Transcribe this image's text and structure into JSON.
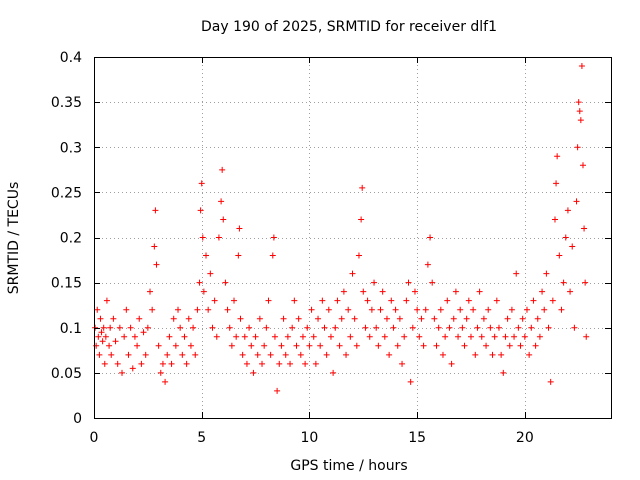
{
  "chart_data": {
    "type": "scatter",
    "title": "Day 190 of 2025, SRMTID for receiver dlf1",
    "xlabel": "GPS time / hours",
    "ylabel": "SRMTID / TECUs",
    "xlim": [
      0,
      24
    ],
    "ylim": [
      0,
      0.4
    ],
    "x_ticks": [
      0,
      5,
      10,
      15,
      20
    ],
    "x_tick_labels": [
      "0",
      "5",
      "10",
      "15",
      "20"
    ],
    "y_ticks": [
      0,
      0.05,
      0.1,
      0.15,
      0.2,
      0.25,
      0.3,
      0.35,
      0.4
    ],
    "y_tick_labels": [
      "0",
      "0.05",
      "0.1",
      "0.15",
      "0.2",
      "0.25",
      "0.3",
      "0.35",
      "0.4"
    ],
    "grid": true,
    "marker": "plus",
    "color": "#ff0000",
    "series": [
      {
        "values": [
          [
            0.05,
            0.1
          ],
          [
            0.1,
            0.08
          ],
          [
            0.15,
            0.12
          ],
          [
            0.2,
            0.09
          ],
          [
            0.25,
            0.07
          ],
          [
            0.3,
            0.11
          ],
          [
            0.35,
            0.095
          ],
          [
            0.4,
            0.085
          ],
          [
            0.45,
            0.1
          ],
          [
            0.5,
            0.06
          ],
          [
            0.55,
            0.09
          ],
          [
            0.6,
            0.13
          ],
          [
            0.7,
            0.08
          ],
          [
            0.75,
            0.1
          ],
          [
            0.8,
            0.07
          ],
          [
            0.9,
            0.11
          ],
          [
            1.0,
            0.085
          ],
          [
            1.1,
            0.06
          ],
          [
            1.2,
            0.1
          ],
          [
            1.3,
            0.05
          ],
          [
            1.4,
            0.09
          ],
          [
            1.5,
            0.12
          ],
          [
            1.6,
            0.07
          ],
          [
            1.7,
            0.1
          ],
          [
            1.8,
            0.055
          ],
          [
            1.9,
            0.09
          ],
          [
            2.0,
            0.08
          ],
          [
            2.1,
            0.11
          ],
          [
            2.2,
            0.06
          ],
          [
            2.3,
            0.095
          ],
          [
            2.4,
            0.07
          ],
          [
            2.5,
            0.1
          ],
          [
            2.6,
            0.14
          ],
          [
            2.7,
            0.12
          ],
          [
            2.8,
            0.19
          ],
          [
            2.85,
            0.23
          ],
          [
            2.9,
            0.17
          ],
          [
            3.0,
            0.08
          ],
          [
            3.1,
            0.05
          ],
          [
            3.2,
            0.06
          ],
          [
            3.3,
            0.04
          ],
          [
            3.4,
            0.07
          ],
          [
            3.5,
            0.09
          ],
          [
            3.6,
            0.06
          ],
          [
            3.7,
            0.11
          ],
          [
            3.8,
            0.08
          ],
          [
            3.9,
            0.12
          ],
          [
            4.0,
            0.1
          ],
          [
            4.1,
            0.07
          ],
          [
            4.2,
            0.09
          ],
          [
            4.3,
            0.06
          ],
          [
            4.4,
            0.11
          ],
          [
            4.5,
            0.08
          ],
          [
            4.6,
            0.1
          ],
          [
            4.7,
            0.07
          ],
          [
            4.8,
            0.12
          ],
          [
            4.9,
            0.15
          ],
          [
            4.95,
            0.23
          ],
          [
            5.0,
            0.26
          ],
          [
            5.05,
            0.2
          ],
          [
            5.1,
            0.14
          ],
          [
            5.2,
            0.18
          ],
          [
            5.3,
            0.12
          ],
          [
            5.4,
            0.16
          ],
          [
            5.5,
            0.1
          ],
          [
            5.6,
            0.13
          ],
          [
            5.7,
            0.09
          ],
          [
            5.8,
            0.2
          ],
          [
            5.9,
            0.24
          ],
          [
            5.95,
            0.275
          ],
          [
            6.0,
            0.22
          ],
          [
            6.1,
            0.15
          ],
          [
            6.2,
            0.12
          ],
          [
            6.3,
            0.1
          ],
          [
            6.4,
            0.08
          ],
          [
            6.5,
            0.13
          ],
          [
            6.6,
            0.09
          ],
          [
            6.7,
            0.18
          ],
          [
            6.75,
            0.21
          ],
          [
            6.8,
            0.11
          ],
          [
            6.9,
            0.07
          ],
          [
            7.0,
            0.09
          ],
          [
            7.1,
            0.06
          ],
          [
            7.2,
            0.1
          ],
          [
            7.3,
            0.08
          ],
          [
            7.4,
            0.05
          ],
          [
            7.5,
            0.09
          ],
          [
            7.6,
            0.07
          ],
          [
            7.7,
            0.11
          ],
          [
            7.8,
            0.06
          ],
          [
            7.9,
            0.08
          ],
          [
            8.0,
            0.1
          ],
          [
            8.1,
            0.13
          ],
          [
            8.2,
            0.07
          ],
          [
            8.3,
            0.18
          ],
          [
            8.35,
            0.2
          ],
          [
            8.4,
            0.09
          ],
          [
            8.5,
            0.03
          ],
          [
            8.6,
            0.06
          ],
          [
            8.7,
            0.08
          ],
          [
            8.8,
            0.11
          ],
          [
            8.9,
            0.07
          ],
          [
            9.0,
            0.09
          ],
          [
            9.1,
            0.06
          ],
          [
            9.2,
            0.1
          ],
          [
            9.3,
            0.13
          ],
          [
            9.4,
            0.08
          ],
          [
            9.5,
            0.11
          ],
          [
            9.6,
            0.07
          ],
          [
            9.7,
            0.09
          ],
          [
            9.8,
            0.06
          ],
          [
            9.9,
            0.1
          ],
          [
            10.0,
            0.08
          ],
          [
            10.1,
            0.12
          ],
          [
            10.2,
            0.09
          ],
          [
            10.3,
            0.06
          ],
          [
            10.4,
            0.11
          ],
          [
            10.5,
            0.08
          ],
          [
            10.6,
            0.13
          ],
          [
            10.7,
            0.1
          ],
          [
            10.8,
            0.07
          ],
          [
            10.9,
            0.12
          ],
          [
            11.0,
            0.09
          ],
          [
            11.1,
            0.05
          ],
          [
            11.2,
            0.1
          ],
          [
            11.3,
            0.13
          ],
          [
            11.4,
            0.08
          ],
          [
            11.5,
            0.11
          ],
          [
            11.6,
            0.14
          ],
          [
            11.7,
            0.07
          ],
          [
            11.8,
            0.12
          ],
          [
            11.9,
            0.09
          ],
          [
            12.0,
            0.16
          ],
          [
            12.1,
            0.11
          ],
          [
            12.2,
            0.08
          ],
          [
            12.3,
            0.18
          ],
          [
            12.4,
            0.22
          ],
          [
            12.45,
            0.255
          ],
          [
            12.5,
            0.14
          ],
          [
            12.6,
            0.1
          ],
          [
            12.7,
            0.13
          ],
          [
            12.8,
            0.09
          ],
          [
            12.9,
            0.12
          ],
          [
            13.0,
            0.15
          ],
          [
            13.1,
            0.1
          ],
          [
            13.2,
            0.08
          ],
          [
            13.3,
            0.12
          ],
          [
            13.4,
            0.14
          ],
          [
            13.5,
            0.09
          ],
          [
            13.6,
            0.11
          ],
          [
            13.7,
            0.07
          ],
          [
            13.8,
            0.13
          ],
          [
            13.9,
            0.1
          ],
          [
            14.0,
            0.12
          ],
          [
            14.1,
            0.08
          ],
          [
            14.2,
            0.11
          ],
          [
            14.3,
            0.06
          ],
          [
            14.4,
            0.09
          ],
          [
            14.5,
            0.13
          ],
          [
            14.6,
            0.15
          ],
          [
            14.7,
            0.04
          ],
          [
            14.8,
            0.1
          ],
          [
            14.9,
            0.14
          ],
          [
            15.0,
            0.12
          ],
          [
            15.1,
            0.09
          ],
          [
            15.2,
            0.11
          ],
          [
            15.3,
            0.08
          ],
          [
            15.4,
            0.12
          ],
          [
            15.5,
            0.17
          ],
          [
            15.6,
            0.2
          ],
          [
            15.7,
            0.15
          ],
          [
            15.8,
            0.11
          ],
          [
            15.9,
            0.08
          ],
          [
            16.0,
            0.1
          ],
          [
            16.1,
            0.12
          ],
          [
            16.2,
            0.07
          ],
          [
            16.3,
            0.09
          ],
          [
            16.4,
            0.13
          ],
          [
            16.5,
            0.1
          ],
          [
            16.6,
            0.06
          ],
          [
            16.7,
            0.11
          ],
          [
            16.8,
            0.14
          ],
          [
            16.9,
            0.09
          ],
          [
            17.0,
            0.12
          ],
          [
            17.1,
            0.1
          ],
          [
            17.2,
            0.08
          ],
          [
            17.3,
            0.11
          ],
          [
            17.4,
            0.13
          ],
          [
            17.5,
            0.09
          ],
          [
            17.6,
            0.12
          ],
          [
            17.7,
            0.07
          ],
          [
            17.8,
            0.1
          ],
          [
            17.9,
            0.14
          ],
          [
            18.0,
            0.09
          ],
          [
            18.1,
            0.11
          ],
          [
            18.2,
            0.08
          ],
          [
            18.3,
            0.12
          ],
          [
            18.4,
            0.1
          ],
          [
            18.5,
            0.07
          ],
          [
            18.6,
            0.09
          ],
          [
            18.7,
            0.13
          ],
          [
            18.8,
            0.1
          ],
          [
            18.9,
            0.07
          ],
          [
            19.0,
            0.05
          ],
          [
            19.1,
            0.09
          ],
          [
            19.2,
            0.11
          ],
          [
            19.3,
            0.08
          ],
          [
            19.4,
            0.12
          ],
          [
            19.5,
            0.09
          ],
          [
            19.6,
            0.16
          ],
          [
            19.7,
            0.1
          ],
          [
            19.8,
            0.08
          ],
          [
            19.9,
            0.11
          ],
          [
            20.0,
            0.09
          ],
          [
            20.1,
            0.12
          ],
          [
            20.2,
            0.07
          ],
          [
            20.3,
            0.1
          ],
          [
            20.4,
            0.13
          ],
          [
            20.5,
            0.08
          ],
          [
            20.6,
            0.11
          ],
          [
            20.7,
            0.09
          ],
          [
            20.8,
            0.14
          ],
          [
            20.9,
            0.12
          ],
          [
            21.0,
            0.16
          ],
          [
            21.1,
            0.1
          ],
          [
            21.2,
            0.04
          ],
          [
            21.3,
            0.13
          ],
          [
            21.4,
            0.22
          ],
          [
            21.45,
            0.26
          ],
          [
            21.5,
            0.29
          ],
          [
            21.6,
            0.18
          ],
          [
            21.7,
            0.12
          ],
          [
            21.8,
            0.15
          ],
          [
            21.9,
            0.2
          ],
          [
            22.0,
            0.23
          ],
          [
            22.1,
            0.14
          ],
          [
            22.2,
            0.19
          ],
          [
            22.3,
            0.1
          ],
          [
            22.4,
            0.24
          ],
          [
            22.45,
            0.3
          ],
          [
            22.5,
            0.35
          ],
          [
            22.55,
            0.34
          ],
          [
            22.6,
            0.33
          ],
          [
            22.65,
            0.39
          ],
          [
            22.7,
            0.28
          ],
          [
            22.75,
            0.21
          ],
          [
            22.8,
            0.15
          ],
          [
            22.85,
            0.09
          ]
        ]
      }
    ]
  }
}
